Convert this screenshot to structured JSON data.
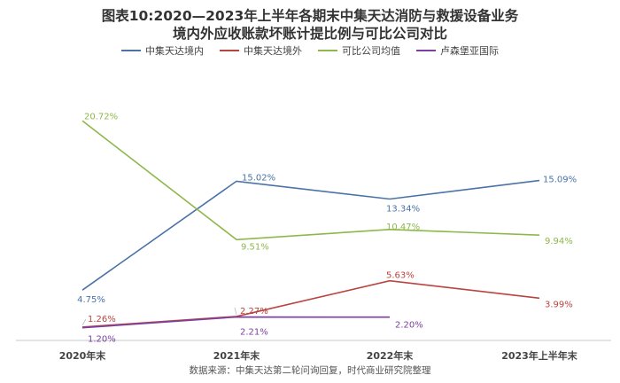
{
  "chart_data": {
    "type": "line",
    "title_line1": "图表10:2020—2023年上半年各期末中集天达消防与救援设备业务",
    "title_line2": "境内外应收账款坏账计提比例与可比公司对比",
    "categories": [
      "2020年末",
      "2021年末",
      "2022年末",
      "2023年上半年末"
    ],
    "series": [
      {
        "name": "中集天达境内",
        "color": "#4a72a8",
        "values": [
          4.75,
          15.02,
          13.34,
          15.09
        ],
        "labels": [
          "4.75%",
          "15.02%",
          "13.34%",
          "15.09%"
        ]
      },
      {
        "name": "中集天达境外",
        "color": "#b9443f",
        "values": [
          1.26,
          2.27,
          5.63,
          3.99
        ],
        "labels": [
          "1.26%",
          "2.27%",
          "5.63%",
          "3.99%"
        ]
      },
      {
        "name": "可比公司均值",
        "color": "#8db84a",
        "values": [
          20.72,
          9.51,
          10.47,
          9.94
        ],
        "labels": [
          "20.72%",
          "9.51%",
          "10.47%",
          "9.94%"
        ]
      },
      {
        "name": "卢森堡亚国际",
        "color": "#7a3fa0",
        "values": [
          1.2,
          2.21,
          2.2,
          null
        ],
        "labels": [
          "1.20%",
          "2.21%",
          "2.20%",
          ""
        ]
      }
    ],
    "ylim": [
      0,
      22.5
    ],
    "grid": false,
    "legend_position": "top"
  },
  "source_note": "数据来源：中集天达第二轮问询回复，时代商业研究院整理"
}
